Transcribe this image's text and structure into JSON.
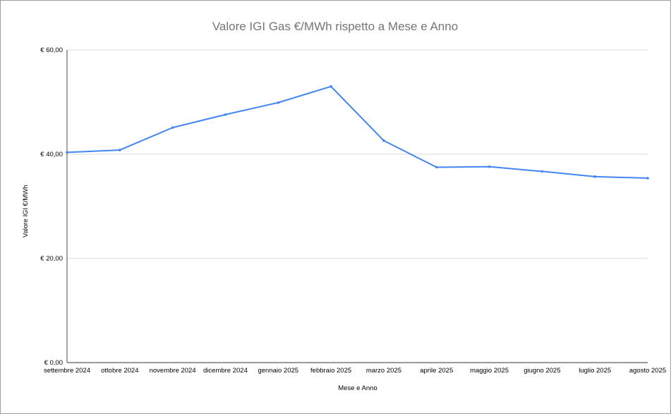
{
  "chart_data": {
    "type": "line",
    "title": "Valore IGI Gas €/MWh rispetto a Mese e Anno",
    "xlabel": "Mese e Anno",
    "ylabel": "Valore IGI €/MWh",
    "categories": [
      "settembre 2024",
      "ottobre 2024",
      "novembre 2024",
      "dicembre 2024",
      "gennaio 2025",
      "febbraio 2025",
      "marzo 2025",
      "aprile 2025",
      "maggio 2025",
      "giugno 2025",
      "luglio 2025",
      "agosto 2025"
    ],
    "values": [
      40.35,
      40.8,
      45.1,
      47.6,
      49.9,
      53.0,
      42.6,
      37.5,
      37.6,
      36.7,
      35.7,
      35.4
    ],
    "ylim": [
      0,
      60
    ],
    "yticks": [
      0,
      20,
      40,
      60
    ],
    "ytick_labels": [
      "€ 0,00",
      "€ 20,00",
      "€ 40,00",
      "€ 60,00"
    ],
    "grid": true,
    "legend": "none",
    "line_color": "#4285f4",
    "grid_color": "#d9d9d9"
  }
}
